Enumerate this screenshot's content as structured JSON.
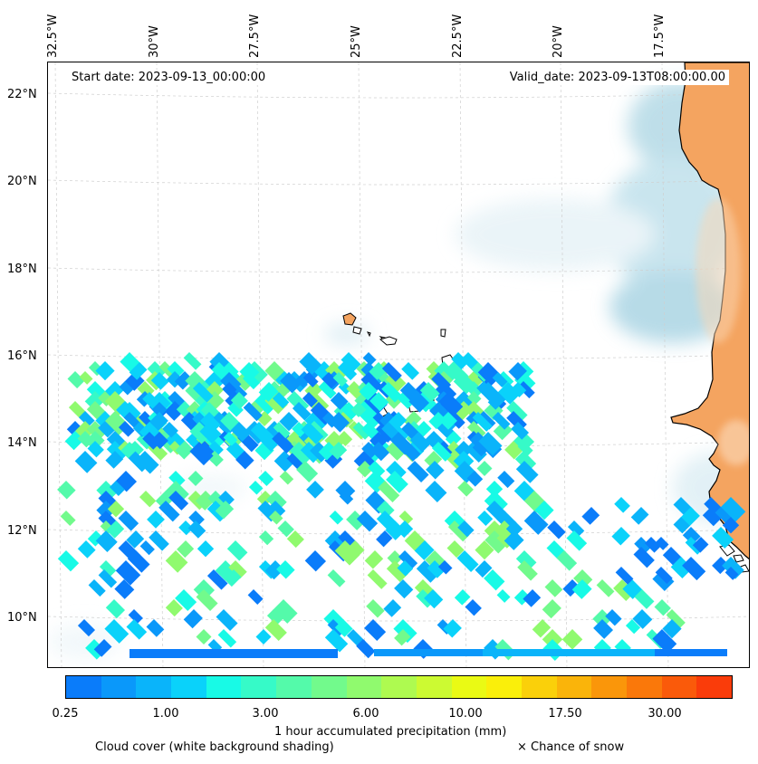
{
  "map": {
    "start_label": "Start date: 2023-09-13_00:00:00",
    "valid_label": "Valid_date: 2023-09-13T08:00:00.00",
    "lon_labels": [
      "32.5°W",
      "30°W",
      "27.5°W",
      "25°W",
      "22.5°W",
      "20°W",
      "17.5°W"
    ],
    "lat_labels": [
      "22°N",
      "20°N",
      "18°N",
      "16°N",
      "14°N",
      "12°N",
      "10°N"
    ],
    "land_color": "#f4a460",
    "cloud_color": "#add8e6",
    "ocean_color": "#ffffff"
  },
  "colorbar": {
    "ticks": [
      "0.25",
      "1.00",
      "3.00",
      "6.00",
      "10.00",
      "17.50",
      "30.00"
    ],
    "colors": [
      "#0a7cfa",
      "#0a98fa",
      "#0ab4fa",
      "#0ad2fa",
      "#18fae6",
      "#36fac8",
      "#54faaa",
      "#72fa8c",
      "#90fa6e",
      "#aefa50",
      "#ccfa32",
      "#eafa14",
      "#faef0a",
      "#fad00a",
      "#fab40a",
      "#fa960a",
      "#fa780a",
      "#fa5a0a",
      "#fa3c0a"
    ],
    "label": "1 hour accumulated precipitation (mm)"
  },
  "legend": {
    "cloud_cover": "Cloud cover (white background shading)",
    "snow": "× Chance of snow"
  }
}
